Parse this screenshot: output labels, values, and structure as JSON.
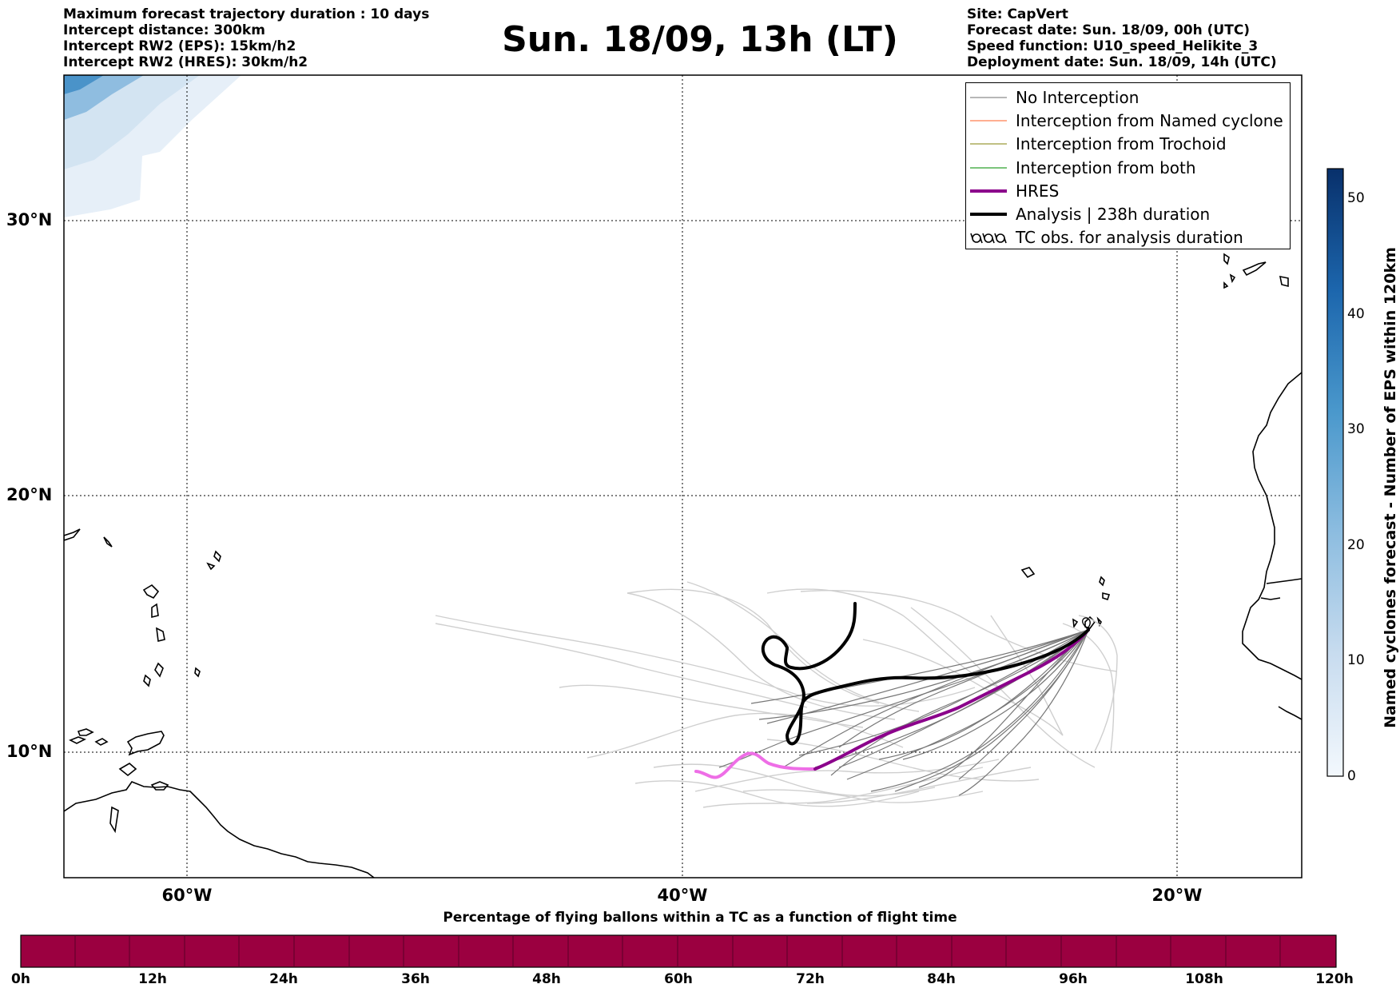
{
  "header": {
    "left_lines": [
      "Maximum forecast trajectory duration : 10 days",
      "Intercept distance: 300km",
      "Intercept RW2 (EPS):  15km/h2",
      "Intercept RW2 (HRES): 30km/h2"
    ],
    "title": "Sun. 18/09, 13h (LT)",
    "right_lines": [
      "Site: CapVert",
      "Forecast date: Sun. 18/09, 00h (UTC)",
      "Speed function: U10_speed_Helikite_3",
      "Deployment date: Sun. 18/09, 14h (UTC)"
    ]
  },
  "map": {
    "lat_labels": [
      "30°N",
      "20°N",
      "10°N"
    ],
    "lon_labels": [
      "60°W",
      "40°W",
      "20°W"
    ],
    "colors": {
      "no_interception": "#8c8c8c",
      "named_cyclone": "#ff7f50",
      "trochoid": "#9a9a3a",
      "both": "#2ca02c",
      "hres": "#8b008b",
      "hres_early": "#ee6ee6",
      "analysis": "#000000"
    }
  },
  "legend": {
    "items": [
      {
        "label": "No Interception",
        "icon": "thin-gray-line"
      },
      {
        "label": "Interception from Named cyclone",
        "icon": "thin-orange-line"
      },
      {
        "label": "Interception from Trochoid",
        "icon": "thin-olive-line"
      },
      {
        "label": "Interception from both",
        "icon": "thin-green-line"
      },
      {
        "label": "HRES",
        "icon": "thick-purple-line"
      },
      {
        "label": "Analysis | 238h duration",
        "icon": "thick-black-line"
      },
      {
        "label": "TC obs. for analysis duration",
        "icon": "cyclone-symbol-icon"
      }
    ]
  },
  "colorbar_right": {
    "label": "Named cyclones forecast - Number of EPS within 120km",
    "ticks": [
      "0",
      "10",
      "20",
      "30",
      "40",
      "50"
    ],
    "range": [
      0,
      52
    ]
  },
  "colorbar_bottom": {
    "title": "Percentage of flying ballons within a TC as a function of flight time",
    "ticks": [
      "0h",
      "12h",
      "24h",
      "36h",
      "48h",
      "60h",
      "72h",
      "84h",
      "96h",
      "108h",
      "120h"
    ],
    "color": "#9b0040"
  }
}
